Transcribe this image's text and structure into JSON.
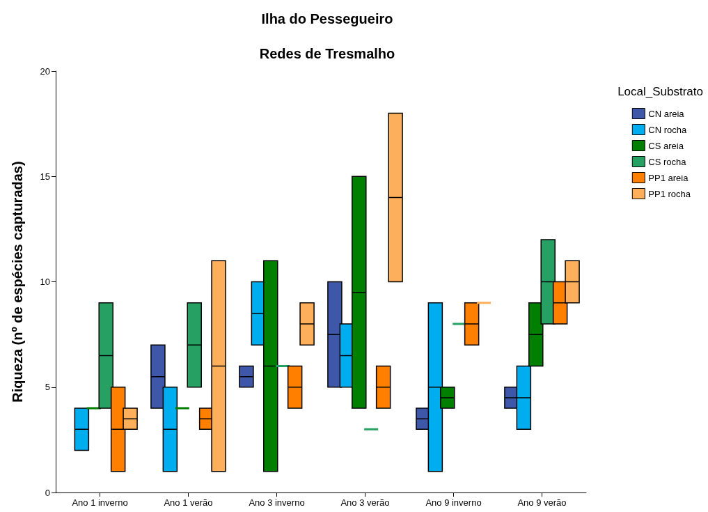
{
  "chart_data": {
    "type": "box",
    "title": "Ilha do Pessegueiro",
    "subtitle": "Redes de Tresmalho",
    "ylabel": "Riqueza (nº de espécies capturadas)",
    "legend_title": "Local_Substrato",
    "legend": "right",
    "categories": [
      "Ano 1 inverno",
      "Ano 1 verão",
      "Ano 3 inverno",
      "Ano 3 verão",
      "Ano 9 inverno",
      "Ano 9 verão"
    ],
    "ylim": [
      0,
      20
    ],
    "yticks": [
      0,
      5,
      10,
      15,
      20
    ],
    "grid": false,
    "series": [
      {
        "name": "CN areia",
        "color": "#3f57a8",
        "boxes": [
          null,
          {
            "low": 4,
            "q1": 4,
            "median": 5.5,
            "q3": 7,
            "high": 7
          },
          {
            "low": 5,
            "q1": 5,
            "median": 5.5,
            "q3": 6,
            "high": 6
          },
          {
            "low": 5,
            "q1": 5,
            "median": 7.5,
            "q3": 10,
            "high": 10
          },
          {
            "low": 3,
            "q1": 3,
            "median": 3.5,
            "q3": 4,
            "high": 4
          },
          {
            "low": 4,
            "q1": 4,
            "median": 4.5,
            "q3": 5,
            "high": 5
          }
        ]
      },
      {
        "name": "CN rocha",
        "color": "#00adee",
        "boxes": [
          {
            "low": 2,
            "q1": 2,
            "median": 3,
            "q3": 4,
            "high": 4
          },
          {
            "low": 1,
            "q1": 1,
            "median": 3,
            "q3": 5,
            "high": 5
          },
          {
            "low": 7,
            "q1": 7,
            "median": 8.5,
            "q3": 10,
            "high": 10
          },
          {
            "low": 5,
            "q1": 5,
            "median": 6.5,
            "q3": 8,
            "high": 8
          },
          {
            "low": 1,
            "q1": 1,
            "median": 5,
            "q3": 9,
            "high": 9
          },
          {
            "low": 3,
            "q1": 3,
            "median": 4.5,
            "q3": 6,
            "high": 6
          }
        ]
      },
      {
        "name": "CS areia",
        "color": "#007f00",
        "boxes": [
          {
            "low": 4,
            "q1": 4,
            "median": 4,
            "q3": 4,
            "high": 4
          },
          {
            "low": 4,
            "q1": 4,
            "median": 4,
            "q3": 4,
            "high": 4
          },
          {
            "low": 1,
            "q1": 1,
            "median": 6,
            "q3": 11,
            "high": 11
          },
          {
            "low": 4,
            "q1": 4,
            "median": 9.5,
            "q3": 15,
            "high": 15
          },
          {
            "low": 4,
            "q1": 4,
            "median": 4.5,
            "q3": 5,
            "high": 5
          },
          {
            "low": 6,
            "q1": 6,
            "median": 7.5,
            "q3": 9,
            "high": 9
          }
        ]
      },
      {
        "name": "CS rocha",
        "color": "#27a064",
        "boxes": [
          {
            "low": 4,
            "q1": 4,
            "median": 6.5,
            "q3": 9,
            "high": 9
          },
          {
            "low": 5,
            "q1": 5,
            "median": 7,
            "q3": 9,
            "high": 9
          },
          {
            "low": 6,
            "q1": 6,
            "median": 6,
            "q3": 6,
            "high": 6
          },
          {
            "low": 3,
            "q1": 3,
            "median": 3,
            "q3": 3,
            "high": 3
          },
          {
            "low": 8,
            "q1": 8,
            "median": 8,
            "q3": 8,
            "high": 8
          },
          {
            "low": 8,
            "q1": 8,
            "median": 10,
            "q3": 12,
            "high": 12
          }
        ]
      },
      {
        "name": "PP1 areia",
        "color": "#ff7f00",
        "boxes": [
          {
            "low": 1,
            "q1": 1,
            "median": 3,
            "q3": 5,
            "high": 5
          },
          {
            "low": 3,
            "q1": 3,
            "median": 3.5,
            "q3": 4,
            "high": 4
          },
          {
            "low": 4,
            "q1": 4,
            "median": 5,
            "q3": 6,
            "high": 6
          },
          {
            "low": 4,
            "q1": 4,
            "median": 5,
            "q3": 6,
            "high": 6
          },
          {
            "low": 7,
            "q1": 7,
            "median": 8,
            "q3": 9,
            "high": 9
          },
          {
            "low": 8,
            "q1": 8,
            "median": 9,
            "q3": 10,
            "high": 10
          }
        ]
      },
      {
        "name": "PP1 rocha",
        "color": "#fdaf5b",
        "boxes": [
          {
            "low": 3,
            "q1": 3,
            "median": 3.5,
            "q3": 4,
            "high": 4
          },
          {
            "low": 1,
            "q1": 1,
            "median": 6,
            "q3": 11,
            "high": 11
          },
          {
            "low": 7,
            "q1": 7,
            "median": 8,
            "q3": 9,
            "high": 9
          },
          {
            "low": 10,
            "q1": 10,
            "median": 14,
            "q3": 18,
            "high": 18
          },
          {
            "low": 9,
            "q1": 9,
            "median": 9,
            "q3": 9,
            "high": 9
          },
          {
            "low": 9,
            "q1": 9,
            "median": 10,
            "q3": 11,
            "high": 11
          }
        ]
      }
    ]
  }
}
